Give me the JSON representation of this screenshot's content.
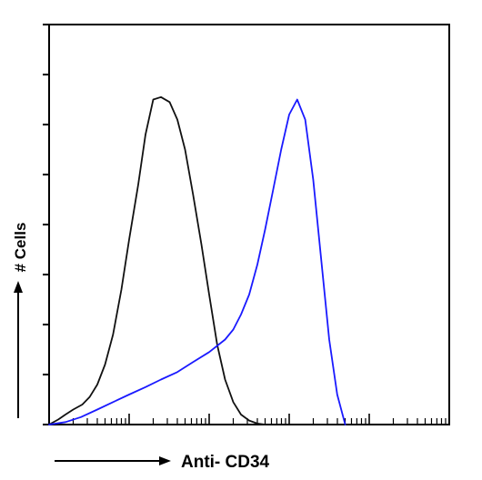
{
  "chart_data": {
    "type": "line",
    "title": "",
    "xlabel": "Anti- CD34",
    "ylabel": "# Cells",
    "x_scale": "log",
    "xlim": [
      1,
      100000
    ],
    "ylim": [
      0,
      8
    ],
    "y_ticks": [
      0,
      1,
      2,
      3,
      4,
      5,
      6,
      7,
      8
    ],
    "grid": false,
    "legend": "none",
    "series": [
      {
        "color": "#111111",
        "x": [
          1,
          1.3,
          1.6,
          2.0,
          2.6,
          3.2,
          4.0,
          5.0,
          6.3,
          8.0,
          10,
          13,
          16,
          20,
          25,
          32,
          40,
          50,
          63,
          80,
          100,
          126,
          158,
          200,
          250,
          316,
          400,
          500
        ],
        "y": [
          0.0,
          0.1,
          0.2,
          0.3,
          0.4,
          0.55,
          0.8,
          1.2,
          1.8,
          2.7,
          3.7,
          4.8,
          5.8,
          6.5,
          6.55,
          6.45,
          6.1,
          5.5,
          4.6,
          3.6,
          2.6,
          1.6,
          0.9,
          0.45,
          0.2,
          0.08,
          0.02,
          0.0
        ]
      },
      {
        "color": "#1a1aff",
        "x": [
          1,
          1.6,
          2.5,
          4.0,
          6.3,
          10,
          16,
          25,
          40,
          63,
          100,
          158,
          200,
          250,
          316,
          400,
          500,
          631,
          794,
          1000,
          1259,
          1585,
          1995,
          2512,
          3162,
          3981,
          5012
        ],
        "y": [
          0.0,
          0.05,
          0.15,
          0.3,
          0.45,
          0.6,
          0.75,
          0.9,
          1.05,
          1.25,
          1.45,
          1.7,
          1.9,
          2.2,
          2.6,
          3.2,
          3.9,
          4.7,
          5.5,
          6.2,
          6.5,
          6.1,
          4.9,
          3.3,
          1.7,
          0.6,
          0.0
        ]
      }
    ]
  }
}
